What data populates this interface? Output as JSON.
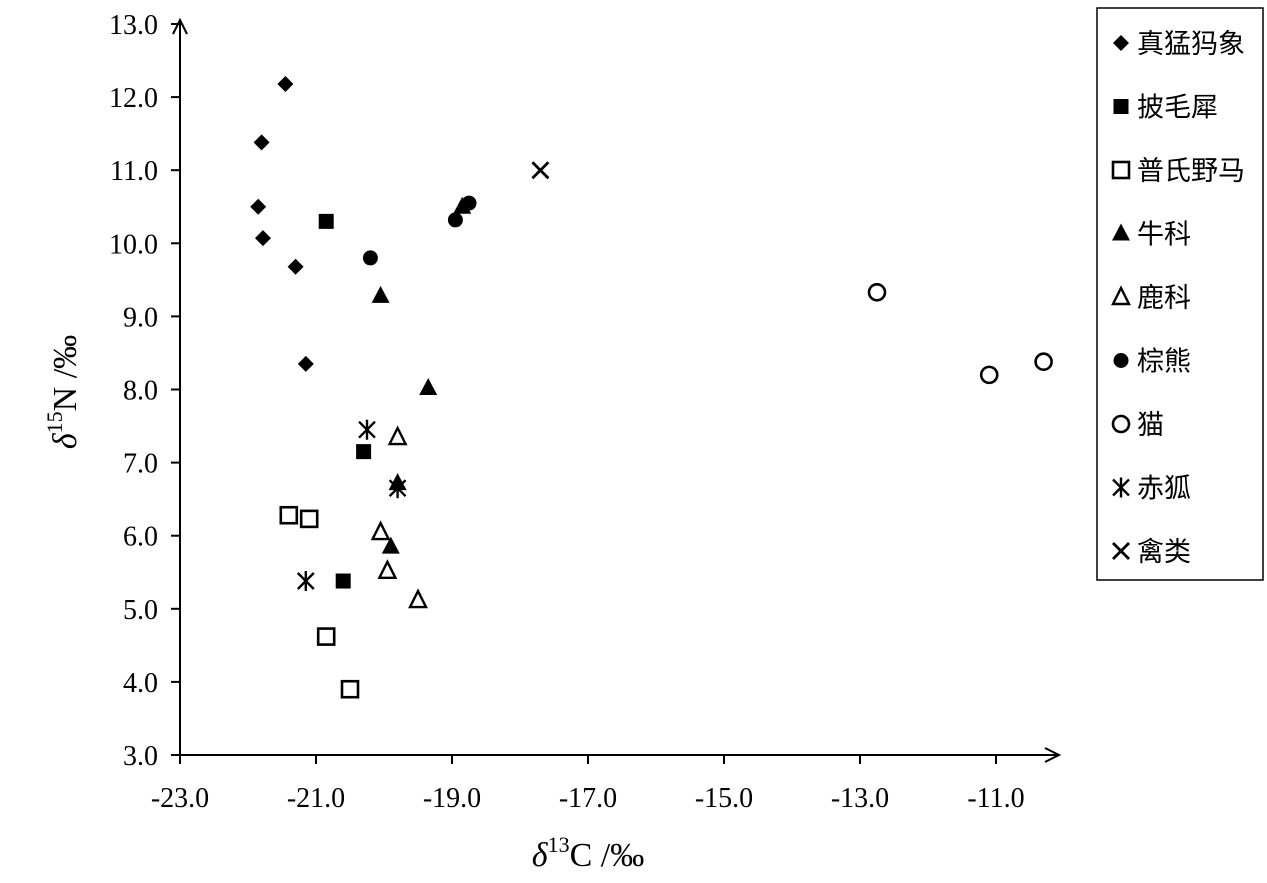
{
  "chart_data": {
    "type": "scatter",
    "xlabel_symbol": "δ",
    "xlabel_sup": "13",
    "xlabel_rest": "C /‰",
    "ylabel_symbol": "δ",
    "ylabel_sup": "15",
    "ylabel_rest": "N /‰",
    "xlim": [
      -23.0,
      -10.0
    ],
    "ylim": [
      3.0,
      13.0
    ],
    "xticks": [
      -23.0,
      -21.0,
      -19.0,
      -17.0,
      -15.0,
      -13.0,
      -11.0
    ],
    "xtick_labels": [
      "-23.0",
      "-21.0",
      "-19.0",
      "-17.0",
      "-15.0",
      "-13.0",
      "-11.0"
    ],
    "yticks": [
      3.0,
      4.0,
      5.0,
      6.0,
      7.0,
      8.0,
      9.0,
      10.0,
      11.0,
      12.0,
      13.0
    ],
    "ytick_labels": [
      "3.0",
      "4.0",
      "5.0",
      "6.0",
      "7.0",
      "8.0",
      "9.0",
      "10.0",
      "11.0",
      "12.0",
      "13.0"
    ],
    "grid": false,
    "legend_position": "right",
    "series": [
      {
        "name": "真猛犸象",
        "marker": "diamond-filled",
        "points": [
          [
            -21.45,
            12.18
          ],
          [
            -21.8,
            11.38
          ],
          [
            -21.85,
            10.5
          ],
          [
            -21.78,
            10.07
          ],
          [
            -21.3,
            9.68
          ],
          [
            -21.15,
            8.35
          ]
        ]
      },
      {
        "name": "披毛犀",
        "marker": "square-filled",
        "points": [
          [
            -20.85,
            10.3
          ],
          [
            -20.3,
            7.15
          ],
          [
            -20.6,
            5.38
          ]
        ]
      },
      {
        "name": "普氏野马",
        "marker": "square-open",
        "points": [
          [
            -21.4,
            6.28
          ],
          [
            -21.1,
            6.23
          ],
          [
            -20.85,
            4.62
          ],
          [
            -20.5,
            3.9
          ]
        ]
      },
      {
        "name": "牛科",
        "marker": "triangle-filled",
        "points": [
          [
            -20.05,
            9.28
          ],
          [
            -19.35,
            8.02
          ],
          [
            -19.8,
            6.72
          ],
          [
            -19.9,
            5.85
          ],
          [
            -18.85,
            10.5
          ]
        ]
      },
      {
        "name": "鹿科",
        "marker": "triangle-open",
        "points": [
          [
            -19.8,
            7.35
          ],
          [
            -20.05,
            6.05
          ],
          [
            -19.95,
            5.52
          ],
          [
            -19.5,
            5.12
          ]
        ]
      },
      {
        "name": "棕熊",
        "marker": "circle-filled",
        "points": [
          [
            -20.2,
            9.8
          ],
          [
            -18.95,
            10.32
          ],
          [
            -18.75,
            10.55
          ]
        ]
      },
      {
        "name": "猫",
        "marker": "circle-open",
        "points": [
          [
            -12.75,
            9.33
          ],
          [
            -11.1,
            8.2
          ],
          [
            -10.3,
            8.38
          ]
        ]
      },
      {
        "name": "赤狐",
        "marker": "star",
        "points": [
          [
            -20.25,
            7.45
          ],
          [
            -19.8,
            6.65
          ],
          [
            -21.15,
            5.38
          ]
        ]
      },
      {
        "name": "禽类",
        "marker": "x",
        "points": [
          [
            -17.7,
            11.0
          ]
        ]
      }
    ]
  }
}
